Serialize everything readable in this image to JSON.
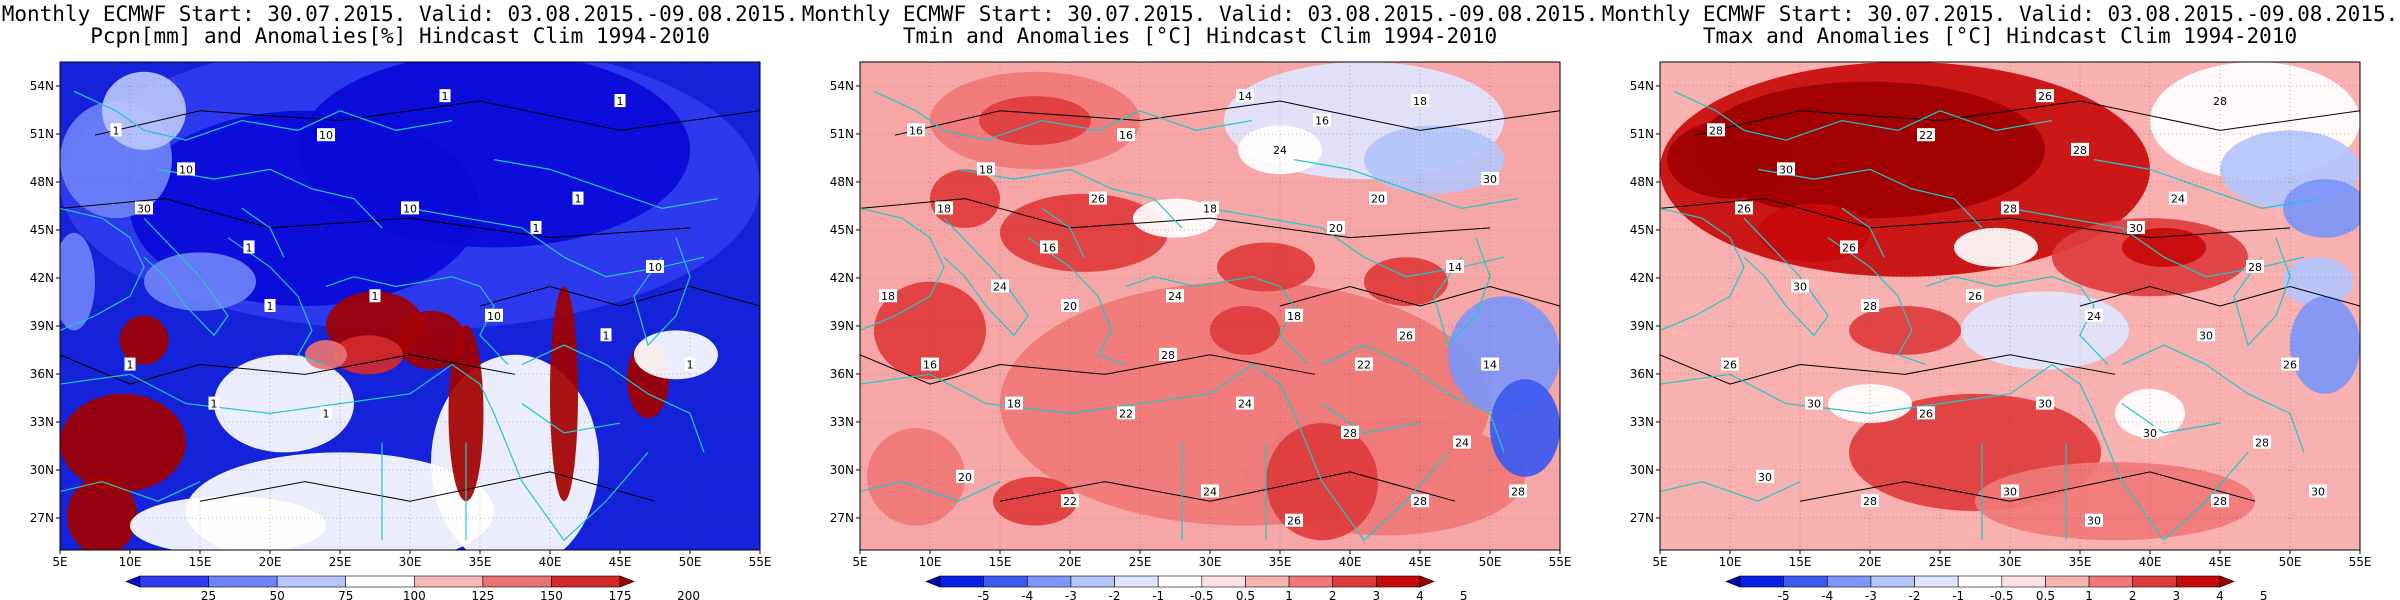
{
  "panels": [
    {
      "title1": "Monthly ECMWF Start: 30.07.2015. Valid: 03.08.2015.-09.08.2015.",
      "title2": "Pcpn[mm] and Anomalies[%] Hindcast Clim 1994-2010",
      "colorbar": {
        "labels": [
          "25",
          "50",
          "75",
          "100",
          "125",
          "150",
          "175",
          "200"
        ],
        "colors": [
          "#0a0ad8",
          "#2f3cf0",
          "#6f82f8",
          "#b8c4fb",
          "#ffffff",
          "#f6b8b8",
          "#e97272",
          "#d22a2a",
          "#a30000"
        ]
      },
      "contour_labels": [
        "1",
        "1",
        "1",
        "10",
        "10",
        "1",
        "30",
        "1",
        "10",
        "1",
        "10",
        "1",
        "1",
        "10",
        "1",
        "1",
        "1",
        "1",
        "1"
      ],
      "background": "#1423d9"
    },
    {
      "title1": "Monthly ECMWF Start: 30.07.2015. Valid: 03.08.2015.-09.08.2015.",
      "title2": "Tmin and Anomalies [°C] Hindcast Clim 1994-2010",
      "colorbar": {
        "labels": [
          "-5",
          "-4",
          "-3",
          "-2",
          "-1",
          "-0.5",
          "0.5",
          "1",
          "2",
          "3",
          "4",
          "5"
        ],
        "colors": [
          "#0000b4",
          "#0a1ee6",
          "#3c5af0",
          "#7d96f8",
          "#b4c4fb",
          "#dfe5fd",
          "#ffffff",
          "#fde0e0",
          "#f8b4b4",
          "#f07878",
          "#e03c3c",
          "#c80a0a",
          "#a00000"
        ]
      },
      "contour_labels": [
        "16",
        "14",
        "18",
        "18",
        "16",
        "20",
        "18",
        "16",
        "18",
        "20",
        "14",
        "20",
        "24",
        "18",
        "26",
        "14",
        "16",
        "18",
        "22",
        "24",
        "28",
        "24",
        "20",
        "22",
        "24",
        "26",
        "28",
        "28",
        "24",
        "24",
        "28",
        "22",
        "18",
        "26",
        "30",
        "16"
      ],
      "background": "#f6a6a6"
    },
    {
      "title1": "Monthly ECMWF Start: 30.07.2015. Valid: 03.08.2015.-09.08.2015.",
      "title2": "Tmax and Anomalies [°C] Hindcast Clim 1994-2010",
      "colorbar": {
        "labels": [
          "-5",
          "-4",
          "-3",
          "-2",
          "-1",
          "-0.5",
          "0.5",
          "1",
          "2",
          "3",
          "4",
          "5"
        ],
        "colors": [
          "#0000b4",
          "#0a1ee6",
          "#3c5af0",
          "#7d96f8",
          "#b4c4fb",
          "#dfe5fd",
          "#ffffff",
          "#fde0e0",
          "#f8b4b4",
          "#f07878",
          "#e03c3c",
          "#c80a0a",
          "#a00000"
        ]
      },
      "contour_labels": [
        "28",
        "26",
        "28",
        "30",
        "22",
        "24",
        "26",
        "26",
        "28",
        "30",
        "28",
        "28",
        "26",
        "24",
        "30",
        "26",
        "26",
        "30",
        "26",
        "30",
        "30",
        "28",
        "30",
        "28",
        "30",
        "30",
        "28",
        "30",
        "30",
        "28"
      ],
      "background": "#f8b0b0"
    }
  ],
  "axes": {
    "lat_labels": [
      "54N",
      "51N",
      "48N",
      "45N",
      "42N",
      "39N",
      "36N",
      "33N",
      "30N",
      "27N"
    ],
    "lon_labels": [
      "5E",
      "10E",
      "15E",
      "20E",
      "25E",
      "30E",
      "35E",
      "40E",
      "45E",
      "50E",
      "55E"
    ]
  }
}
